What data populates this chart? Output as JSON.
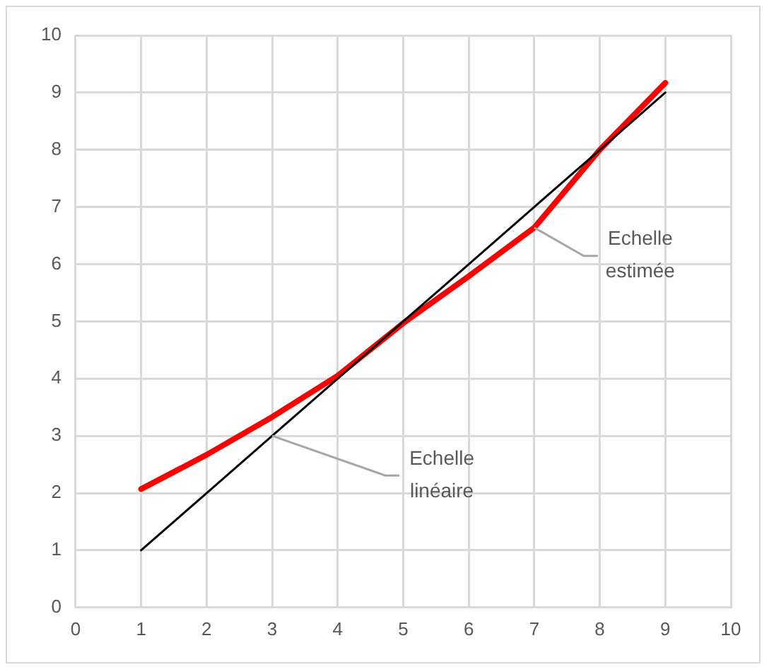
{
  "chart_data": {
    "type": "line",
    "x": [
      1,
      2,
      3,
      4,
      5,
      6,
      7,
      8,
      9
    ],
    "series": [
      {
        "color": "#000000",
        "values": [
          1,
          2,
          3,
          4,
          5,
          6,
          7,
          8,
          9
        ]
      },
      {
        "color": "#ff0000",
        "values": [
          2.07,
          2.67,
          3.33,
          4.05,
          4.97,
          5.79,
          6.64,
          8.0,
          9.17
        ]
      }
    ],
    "xlim": [
      0,
      10
    ],
    "xticks": [
      0,
      1,
      2,
      3,
      4,
      5,
      6,
      7,
      8,
      9,
      10
    ],
    "ylim": [
      0,
      10
    ],
    "yticks": [
      0,
      1,
      2,
      3,
      4,
      5,
      6,
      7,
      8,
      9,
      10
    ],
    "grid": true,
    "legend": false,
    "marker": "none",
    "annotations": [
      {
        "text": "Echelle\nlinéaire",
        "x": 3,
        "y": 3
      },
      {
        "text": "Echelle\nestimée",
        "x": 7,
        "y": 6.64
      }
    ]
  }
}
